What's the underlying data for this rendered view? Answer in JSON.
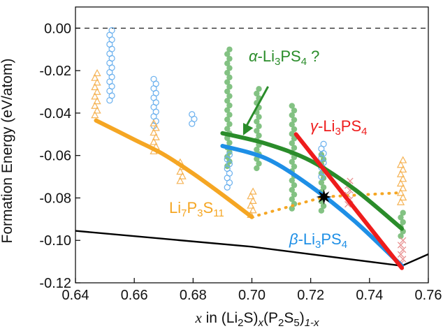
{
  "chart_data": {
    "type": "scatter",
    "xlabel_parts": [
      "x",
      " in (Li",
      "2",
      "S)",
      "x",
      "(P",
      "2",
      "S",
      "5",
      ")",
      "1-x"
    ],
    "ylabel": "Formation Energy (eV/atom)",
    "xlim": [
      0.64,
      0.76
    ],
    "ylim": [
      -0.12,
      0.01
    ],
    "xticks": [
      "0.64",
      "0.66",
      "0.68",
      "0.70",
      "0.72",
      "0.74",
      "0.76"
    ],
    "yticks": [
      "0.00",
      "-0.02",
      "-0.04",
      "-0.06",
      "-0.08",
      "-0.10",
      "-0.12"
    ],
    "xtick_values": [
      0.64,
      0.66,
      0.68,
      0.7,
      0.72,
      0.74,
      0.76
    ],
    "ytick_values": [
      0.0,
      -0.02,
      -0.04,
      -0.06,
      -0.08,
      -0.1,
      -0.12
    ],
    "colors": {
      "orange": "#f5a623",
      "blue": "#1e8fe6",
      "green": "#2a8c2a",
      "red": "#ee1c1c",
      "black": "#000000",
      "orange_marker": "#f5b457",
      "blue_marker": "#6ab0ee",
      "green_marker": "#7cbf7c",
      "pink_marker": "#e89090"
    },
    "reference_line": {
      "y": 0.0,
      "style": "dashed"
    },
    "hull": [
      [
        0.64,
        -0.0955
      ],
      [
        0.7,
        -0.103
      ],
      [
        0.751,
        -0.112
      ],
      [
        0.76,
        -0.1065
      ]
    ],
    "series": [
      {
        "name": "Li7P3S11 curve",
        "color": "orange",
        "width": 6,
        "points": [
          [
            0.647,
            -0.0435
          ],
          [
            0.66,
            -0.0525
          ],
          [
            0.67,
            -0.0595
          ],
          [
            0.68,
            -0.0685
          ],
          [
            0.69,
            -0.0785
          ],
          [
            0.7,
            -0.089
          ]
        ]
      },
      {
        "name": "Li7P3S11 dotted",
        "color": "orange",
        "width": 4,
        "dash": "1,9",
        "points": [
          [
            0.7,
            -0.089
          ],
          [
            0.7245,
            -0.0795
          ],
          [
            0.751,
            -0.0775
          ]
        ]
      },
      {
        "name": "alpha-Li3PS4 curve",
        "color": "green",
        "width": 6,
        "points": [
          [
            0.69,
            -0.0495
          ],
          [
            0.705,
            -0.0545
          ],
          [
            0.72,
            -0.0625
          ],
          [
            0.735,
            -0.076
          ],
          [
            0.751,
            -0.0945
          ]
        ]
      },
      {
        "name": "beta-Li3PS4 curve",
        "color": "blue",
        "width": 6,
        "points": [
          [
            0.69,
            -0.0555
          ],
          [
            0.705,
            -0.0615
          ],
          [
            0.72,
            -0.0745
          ],
          [
            0.735,
            -0.091
          ],
          [
            0.751,
            -0.112
          ]
        ]
      },
      {
        "name": "gamma-Li3PS4 line",
        "color": "red",
        "width": 6,
        "points": [
          [
            0.715,
            -0.05
          ],
          [
            0.751,
            -0.113
          ]
        ]
      }
    ],
    "scatter_columns": [
      {
        "x": 0.647,
        "marker": "triangle",
        "color": "orange_marker",
        "ymin": -0.041,
        "ymax": -0.02
      },
      {
        "x": 0.652,
        "marker": "circle",
        "color": "blue_marker",
        "ymin": -0.034,
        "ymax": 0.0
      },
      {
        "x": 0.667,
        "marker": "circle",
        "color": "blue_marker",
        "ymin": -0.046,
        "ymax": -0.023
      },
      {
        "x": 0.667,
        "marker": "triangle",
        "color": "orange_marker",
        "ymin": -0.058,
        "ymax": -0.044
      },
      {
        "x": 0.676,
        "marker": "triangle",
        "color": "orange_marker",
        "ymin": -0.072,
        "ymax": -0.063
      },
      {
        "x": 0.68,
        "marker": "circle",
        "color": "blue_marker",
        "ymin": -0.045,
        "ymax": -0.039
      },
      {
        "x": 0.692,
        "marker": "circle",
        "color": "green_marker",
        "ymin": -0.065,
        "ymax": -0.008
      },
      {
        "x": 0.692,
        "marker": "circle",
        "color": "blue_marker",
        "ymin": -0.075,
        "ymax": -0.058
      },
      {
        "x": 0.7,
        "marker": "triangle",
        "color": "orange_marker",
        "ymin": -0.088,
        "ymax": -0.077
      },
      {
        "x": 0.702,
        "marker": "circle",
        "color": "green_marker",
        "ymin": -0.066,
        "ymax": -0.028
      },
      {
        "x": 0.714,
        "marker": "circle",
        "color": "green_marker",
        "ymin": -0.085,
        "ymax": -0.035
      },
      {
        "x": 0.724,
        "marker": "circle",
        "color": "green_marker",
        "ymin": -0.086,
        "ymax": -0.058
      },
      {
        "x": 0.724,
        "marker": "circle",
        "color": "blue_marker",
        "ymin": -0.07,
        "ymax": -0.054
      },
      {
        "x": 0.733,
        "marker": "cross",
        "color": "pink_marker",
        "ymin": -0.083,
        "ymax": -0.071
      },
      {
        "x": 0.751,
        "marker": "triangle",
        "color": "orange_marker",
        "ymin": -0.082,
        "ymax": -0.061
      },
      {
        "x": 0.751,
        "marker": "circle",
        "color": "green_marker",
        "ymin": -0.098,
        "ymax": -0.085
      },
      {
        "x": 0.751,
        "marker": "cross",
        "color": "pink_marker",
        "ymin": -0.111,
        "ymax": -0.1
      }
    ],
    "star": {
      "x": 0.7245,
      "y": -0.0795
    },
    "annotations": {
      "alpha": {
        "prefix": "α",
        "body": "-Li",
        "sub": "3",
        "tail": "PS",
        "sub2": "4",
        "suffix": " ?"
      },
      "gamma": {
        "prefix": "γ",
        "body": "-Li",
        "sub": "3",
        "tail": "PS",
        "sub2": "4"
      },
      "beta": {
        "prefix": "β",
        "body": "-Li",
        "sub": "3",
        "tail": "PS",
        "sub2": "4"
      },
      "li7": {
        "a": "Li",
        "s1": "7",
        "b": "P",
        "s2": "3",
        "c": "S",
        "s3": "11"
      }
    },
    "arrow": {
      "from": [
        0.7055,
        -0.0275
      ],
      "to": [
        0.697,
        -0.0505
      ]
    }
  }
}
